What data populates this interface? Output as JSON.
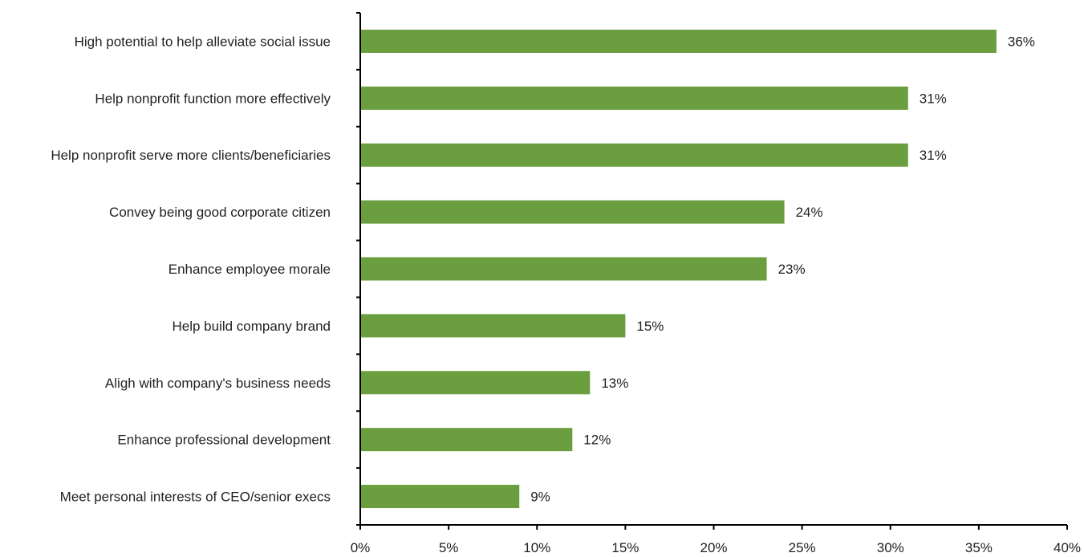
{
  "chart_data": {
    "type": "bar",
    "orientation": "horizontal",
    "categories": [
      "High potential to help alleviate social issue",
      "Help nonprofit function more effectively",
      "Help nonprofit serve more clients/beneficiaries",
      "Convey being good corporate citizen",
      "Enhance employee morale",
      "Help build company brand",
      "Aligh with company's business needs",
      "Enhance professional development",
      "Meet personal interests of CEO/senior execs"
    ],
    "values": [
      36,
      31,
      31,
      24,
      23,
      15,
      13,
      12,
      9
    ],
    "value_labels": [
      "36%",
      "31%",
      "31%",
      "24%",
      "23%",
      "15%",
      "13%",
      "12%",
      "9%"
    ],
    "xlim": [
      0,
      40
    ],
    "x_ticks": [
      0,
      5,
      10,
      15,
      20,
      25,
      30,
      35,
      40
    ],
    "x_tick_labels": [
      "0%",
      "5%",
      "10%",
      "15%",
      "20%",
      "25%",
      "30%",
      "35%",
      "40%"
    ],
    "bar_color": "#6a9e3f",
    "grid": false,
    "legend": "none"
  }
}
